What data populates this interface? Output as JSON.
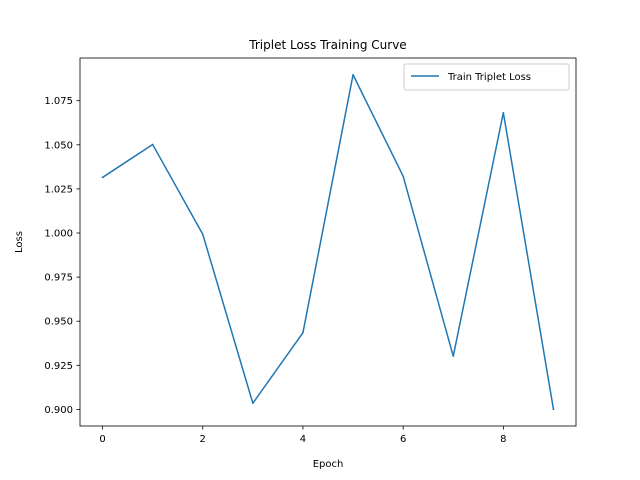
{
  "chart_data": {
    "type": "line",
    "title": "Triplet Loss Training Curve",
    "xlabel": "Epoch",
    "ylabel": "Loss",
    "x": [
      0,
      1,
      2,
      3,
      4,
      5,
      6,
      7,
      8,
      9
    ],
    "series": [
      {
        "name": "Train Triplet Loss",
        "color": "#1f77b4",
        "values": [
          1.0315,
          1.0502,
          0.9993,
          0.9035,
          0.9435,
          1.0897,
          1.0322,
          0.9302,
          1.0682,
          0.9001
        ]
      }
    ],
    "xlim": [
      -0.45,
      9.45
    ],
    "ylim": [
      0.8906,
      1.0992
    ],
    "xticks": [
      0,
      2,
      4,
      6,
      8
    ],
    "xtick_labels": [
      "0",
      "2",
      "4",
      "6",
      "8"
    ],
    "yticks": [
      0.9,
      0.925,
      0.95,
      0.975,
      1.0,
      1.025,
      1.05,
      1.075
    ],
    "ytick_labels": [
      "0.900",
      "0.925",
      "0.950",
      "0.975",
      "1.000",
      "1.025",
      "1.050",
      "1.075"
    ],
    "grid": false,
    "legend_position": "top-right"
  }
}
